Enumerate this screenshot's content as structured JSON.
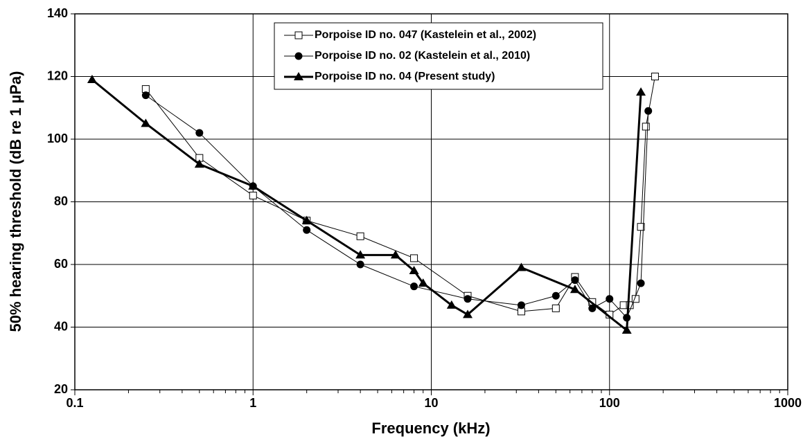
{
  "chart_data": {
    "type": "line",
    "xlabel": "Frequency (kHz)",
    "ylabel": "50%  hearing threshold (dB re 1 µPa)",
    "xscale": "log",
    "xlim": [
      0.1,
      1000
    ],
    "xticks": [
      0.1,
      1,
      10,
      100,
      1000
    ],
    "ylim": [
      20,
      140
    ],
    "yticks": [
      20,
      40,
      60,
      80,
      100,
      120,
      140
    ],
    "grid": true,
    "legend": "upper center",
    "series": [
      {
        "name": "Porpoise ID no. 047 (Kastelein et al., 2002)",
        "color": "#000000",
        "marker": "square",
        "linewidth": 1,
        "x": [
          0.25,
          0.5,
          1,
          2,
          4,
          8,
          16,
          32,
          50,
          64,
          80,
          100,
          120,
          130,
          140,
          150,
          160,
          180
        ],
        "values": [
          116,
          94,
          82,
          74,
          69,
          62,
          50,
          45,
          46,
          56,
          48,
          44,
          47,
          47,
          49,
          72,
          104,
          120
        ]
      },
      {
        "name": "Porpoise ID no. 02 (Kastelein et al., 2010)",
        "color": "#000000",
        "marker": "circle",
        "linewidth": 1,
        "x": [
          0.25,
          0.5,
          1,
          2,
          4,
          8,
          16,
          32,
          50,
          64,
          80,
          100,
          125,
          150,
          165
        ],
        "values": [
          114,
          102,
          85,
          71,
          60,
          53,
          49,
          47,
          50,
          55,
          46,
          49,
          43,
          54,
          109
        ]
      },
      {
        "name": "Porpoise ID no. 04 (Present study)",
        "color": "#000000",
        "marker": "triangle",
        "linewidth": 3,
        "x": [
          0.125,
          0.25,
          0.5,
          1,
          2,
          4,
          6.3,
          8,
          9,
          13,
          16,
          32,
          64,
          125,
          150
        ],
        "values": [
          119,
          105,
          92,
          85,
          74,
          63,
          63,
          58,
          54,
          47,
          44,
          59,
          52,
          39,
          115
        ]
      }
    ]
  }
}
